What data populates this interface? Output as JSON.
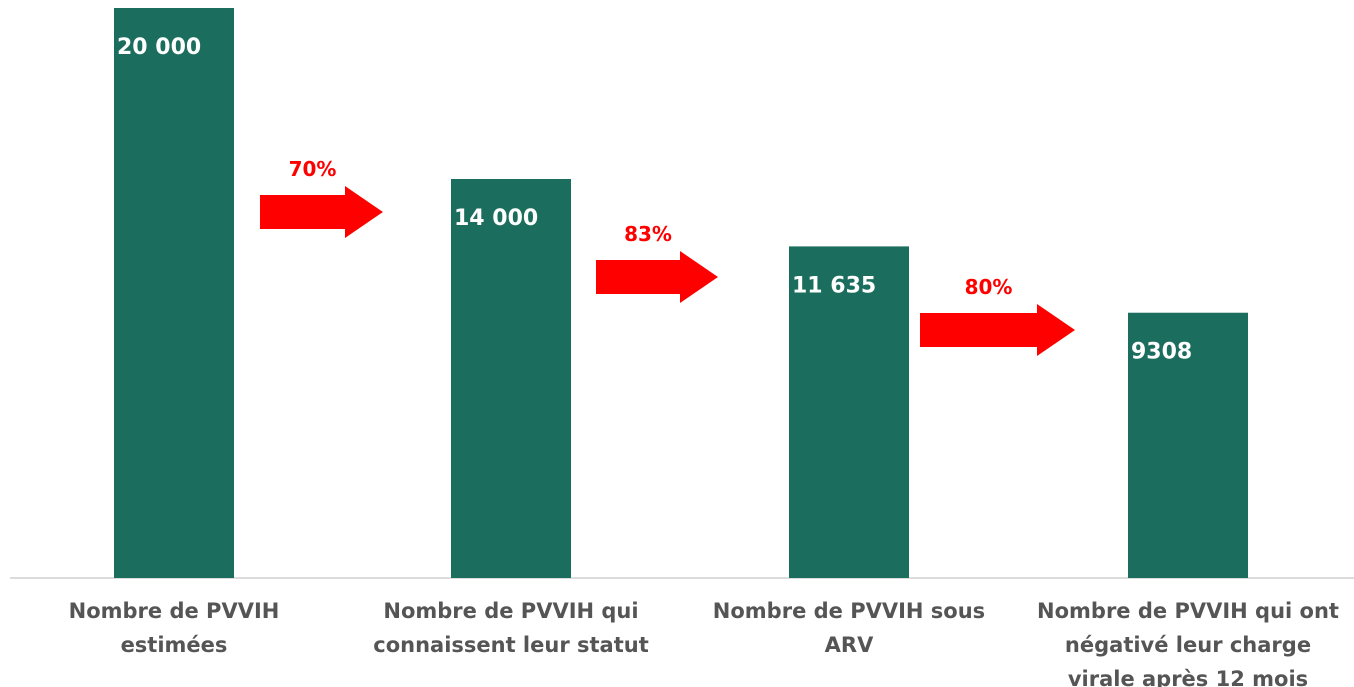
{
  "chart_data": {
    "type": "bar",
    "categories": [
      "Nombre de PVVIH estimées",
      "Nombre de PVVIH qui connaissent leur statut",
      "Nombre de PVVIH sous ARV",
      "Nombre de PVVIH qui ont négativé leur charge virale après 12 mois"
    ],
    "values": [
      20000,
      14000,
      11635,
      9308
    ],
    "value_labels": [
      "20 000",
      "14 000",
      "11 635",
      "9308"
    ],
    "color": "#1b6e5e",
    "ylim": [
      0,
      20000
    ],
    "annotations": [
      {
        "value": 70,
        "label": "70%"
      },
      {
        "value": 83,
        "label": "83%"
      },
      {
        "value": 80,
        "label": "80%"
      }
    ],
    "annotation_color": "#ff0000"
  }
}
